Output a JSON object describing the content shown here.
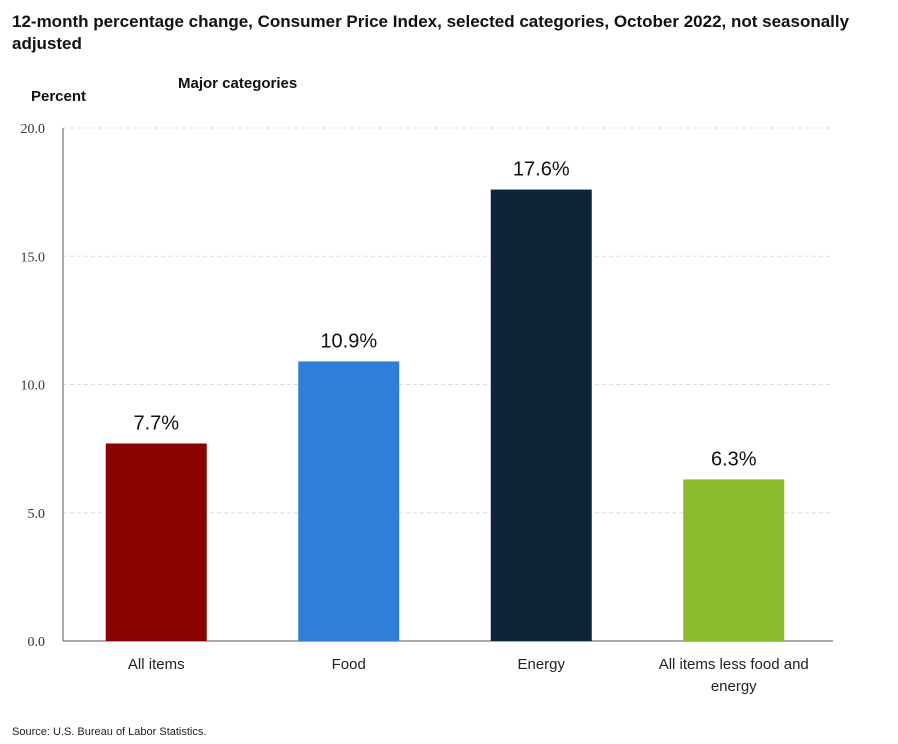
{
  "chart_data": {
    "type": "bar",
    "title": "12-month percentage change, Consumer Price Index, selected categories, October 2022, not seasonally adjusted",
    "subtitle": "Major categories",
    "ylabel": "Percent",
    "xlabel": "",
    "ylim": [
      0,
      20
    ],
    "yticks": [
      "0.0",
      "5.0",
      "10.0",
      "15.0",
      "20.0"
    ],
    "grid": true,
    "categories": [
      [
        "All items"
      ],
      [
        "Food"
      ],
      [
        "Energy"
      ],
      [
        "All items less food and",
        "energy"
      ]
    ],
    "values": [
      7.7,
      10.9,
      17.6,
      6.3
    ],
    "data_labels": [
      "7.7%",
      "10.9%",
      "17.6%",
      "6.3%"
    ],
    "colors": [
      "#8b0000",
      "#2f7ed8",
      "#0f2339",
      "#8bbb2a"
    ],
    "source": "Source: U.S. Bureau of Labor Statistics."
  }
}
